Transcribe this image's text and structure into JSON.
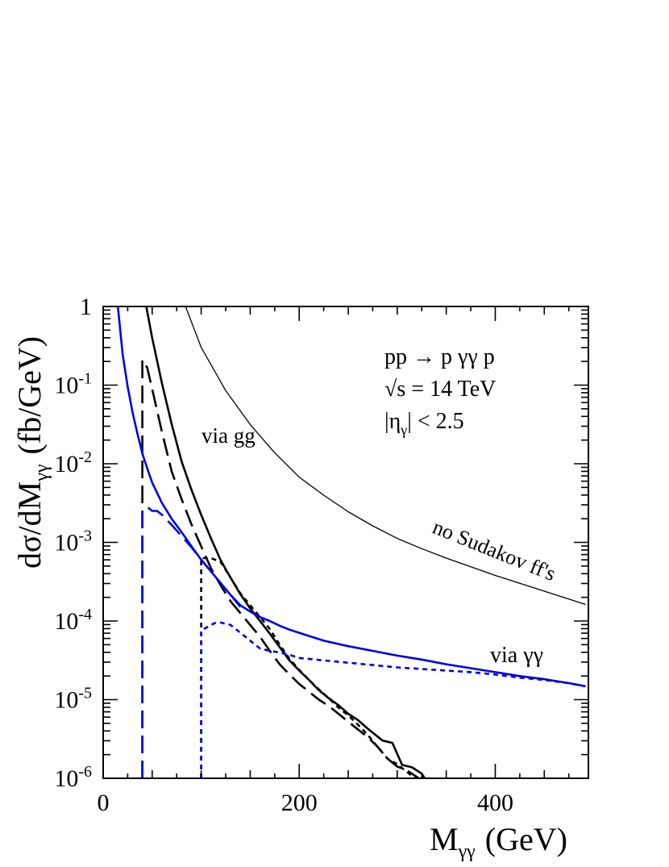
{
  "chart_data": {
    "type": "line",
    "title": "",
    "xlabel": "M",
    "xlabel_sub": "γγ",
    "xlabel_unit": "(GeV)",
    "ylabel": "dσ/dM",
    "ylabel_sub": "γγ",
    "ylabel_unit": "(fb/GeV)",
    "xlim": [
      0,
      495
    ],
    "ylim_log10": [
      -6,
      0
    ],
    "y_scale": "log",
    "grid": false,
    "x_ticks": [
      {
        "value": 0,
        "label": "0"
      },
      {
        "value": 200,
        "label": "200"
      },
      {
        "value": 400,
        "label": "400"
      }
    ],
    "y_ticks": [
      {
        "exp": 0,
        "base": "1",
        "sup": ""
      },
      {
        "exp": -1,
        "base": "10",
        "sup": "-1"
      },
      {
        "exp": -2,
        "base": "10",
        "sup": "-2"
      },
      {
        "exp": -3,
        "base": "10",
        "sup": "-3"
      },
      {
        "exp": -4,
        "base": "10",
        "sup": "-4"
      },
      {
        "exp": -5,
        "base": "10",
        "sup": "-5"
      },
      {
        "exp": -6,
        "base": "10",
        "sup": "-6"
      }
    ],
    "legend_box": {
      "line1": "pp → p γγ p",
      "line2_sqrt": "√",
      "line2_rest": "s = 14 TeV",
      "line3_start": "|η",
      "line3_sub": "γ",
      "line3_end": "| < 2.5"
    },
    "curve_labels": {
      "via_gg": "via gg",
      "no_sudakov": "no Sudakov ff's",
      "via_yy": "via γγ"
    },
    "colors": {
      "black": "#000000",
      "blue": "#0000e0"
    },
    "series": [
      {
        "color": "black",
        "style": "solid-thin",
        "points": [
          [
            84,
            0
          ],
          [
            100,
            -0.52
          ],
          [
            125,
            -1.07
          ],
          [
            150,
            -1.5
          ],
          [
            175,
            -1.86
          ],
          [
            200,
            -2.17
          ],
          [
            225,
            -2.4
          ],
          [
            250,
            -2.61
          ],
          [
            275,
            -2.79
          ],
          [
            300,
            -2.95
          ],
          [
            325,
            -3.08
          ],
          [
            350,
            -3.2
          ],
          [
            375,
            -3.31
          ],
          [
            400,
            -3.42
          ],
          [
            425,
            -3.52
          ],
          [
            450,
            -3.62
          ],
          [
            475,
            -3.72
          ],
          [
            492,
            -3.79
          ]
        ]
      },
      {
        "color": "black",
        "style": "solid",
        "points": [
          [
            44,
            0
          ],
          [
            50,
            -0.4
          ],
          [
            60,
            -0.98
          ],
          [
            70,
            -1.5
          ],
          [
            80,
            -1.97
          ],
          [
            90,
            -2.33
          ],
          [
            100,
            -2.65
          ],
          [
            110,
            -2.95
          ],
          [
            120,
            -3.23
          ],
          [
            130,
            -3.45
          ],
          [
            140,
            -3.66
          ],
          [
            150,
            -3.84
          ],
          [
            160,
            -4.0
          ],
          [
            170,
            -4.16
          ],
          [
            180,
            -4.33
          ],
          [
            190,
            -4.5
          ],
          [
            200,
            -4.63
          ],
          [
            210,
            -4.75
          ],
          [
            220,
            -4.88
          ],
          [
            230,
            -4.98
          ],
          [
            240,
            -5.07
          ],
          [
            250,
            -5.18
          ],
          [
            260,
            -5.26
          ],
          [
            270,
            -5.37
          ],
          [
            285,
            -5.52
          ],
          [
            295,
            -5.55
          ],
          [
            305,
            -5.83
          ],
          [
            315,
            -5.86
          ],
          [
            325,
            -5.94
          ],
          [
            328,
            -6.0
          ]
        ]
      },
      {
        "color": "black",
        "style": "dashed-long",
        "points": [
          [
            40,
            -6.0
          ],
          [
            40,
            -0.68
          ],
          [
            45,
            -0.78
          ],
          [
            50,
            -1.05
          ],
          [
            60,
            -1.6
          ],
          [
            70,
            -2.1
          ],
          [
            80,
            -2.45
          ],
          [
            90,
            -2.77
          ],
          [
            100,
            -3.05
          ],
          [
            110,
            -3.33
          ],
          [
            120,
            -3.55
          ],
          [
            130,
            -3.75
          ],
          [
            140,
            -3.9
          ],
          [
            150,
            -4.05
          ],
          [
            160,
            -4.2
          ],
          [
            170,
            -4.38
          ],
          [
            180,
            -4.55
          ],
          [
            190,
            -4.68
          ],
          [
            200,
            -4.8
          ],
          [
            210,
            -4.9
          ],
          [
            220,
            -5.0
          ],
          [
            230,
            -5.08
          ],
          [
            240,
            -5.18
          ],
          [
            250,
            -5.28
          ],
          [
            260,
            -5.38
          ],
          [
            270,
            -5.48
          ],
          [
            280,
            -5.6
          ],
          [
            290,
            -5.75
          ],
          [
            300,
            -5.85
          ],
          [
            310,
            -5.9
          ],
          [
            322,
            -6.0
          ]
        ]
      },
      {
        "color": "black",
        "style": "dotted",
        "points": [
          [
            100,
            -6.0
          ],
          [
            100,
            -3.2
          ],
          [
            110,
            -3.2
          ],
          [
            120,
            -3.25
          ],
          [
            130,
            -3.45
          ],
          [
            140,
            -3.65
          ],
          [
            150,
            -3.8
          ],
          [
            160,
            -3.95
          ],
          [
            170,
            -4.1
          ],
          [
            180,
            -4.3
          ],
          [
            190,
            -4.48
          ],
          [
            200,
            -4.62
          ],
          [
            210,
            -4.75
          ],
          [
            220,
            -4.87
          ],
          [
            230,
            -4.98
          ],
          [
            240,
            -5.1
          ],
          [
            250,
            -5.2
          ],
          [
            260,
            -5.32
          ],
          [
            270,
            -5.45
          ],
          [
            280,
            -5.6
          ],
          [
            290,
            -5.75
          ],
          [
            300,
            -5.82
          ],
          [
            310,
            -5.92
          ],
          [
            318,
            -6.0
          ]
        ]
      },
      {
        "color": "blue",
        "style": "solid",
        "points": [
          [
            15,
            0
          ],
          [
            20,
            -0.62
          ],
          [
            25,
            -1.02
          ],
          [
            30,
            -1.35
          ],
          [
            35,
            -1.62
          ],
          [
            40,
            -1.87
          ],
          [
            45,
            -2.06
          ],
          [
            50,
            -2.24
          ],
          [
            60,
            -2.5
          ],
          [
            70,
            -2.7
          ],
          [
            80,
            -2.87
          ],
          [
            90,
            -3.05
          ],
          [
            100,
            -3.22
          ],
          [
            110,
            -3.37
          ],
          [
            120,
            -3.52
          ],
          [
            130,
            -3.67
          ],
          [
            140,
            -3.8
          ],
          [
            150,
            -3.88
          ],
          [
            160,
            -3.95
          ],
          [
            170,
            -4.0
          ],
          [
            180,
            -4.06
          ],
          [
            190,
            -4.11
          ],
          [
            200,
            -4.15
          ],
          [
            225,
            -4.25
          ],
          [
            250,
            -4.32
          ],
          [
            275,
            -4.38
          ],
          [
            300,
            -4.44
          ],
          [
            325,
            -4.49
          ],
          [
            350,
            -4.55
          ],
          [
            375,
            -4.6
          ],
          [
            400,
            -4.65
          ],
          [
            425,
            -4.7
          ],
          [
            450,
            -4.74
          ],
          [
            475,
            -4.79
          ],
          [
            492,
            -4.83
          ]
        ]
      },
      {
        "color": "blue",
        "style": "dashed-long",
        "points": [
          [
            40,
            -6.0
          ],
          [
            40,
            -2.59
          ],
          [
            45,
            -2.55
          ],
          [
            50,
            -2.6
          ],
          [
            55,
            -2.6
          ],
          [
            60,
            -2.65
          ],
          [
            70,
            -2.78
          ],
          [
            80,
            -2.92
          ],
          [
            90,
            -3.06
          ],
          [
            100,
            -3.22
          ],
          [
            110,
            -3.37
          ],
          [
            120,
            -3.52
          ],
          [
            130,
            -3.67
          ],
          [
            140,
            -3.82
          ]
        ]
      },
      {
        "color": "blue",
        "style": "dotted",
        "points": [
          [
            100,
            -6.0
          ],
          [
            100,
            -4.12
          ],
          [
            110,
            -4.05
          ],
          [
            115,
            -4.02
          ],
          [
            120,
            -4.02
          ],
          [
            130,
            -4.05
          ],
          [
            140,
            -4.15
          ],
          [
            150,
            -4.25
          ],
          [
            160,
            -4.35
          ],
          [
            170,
            -4.38
          ],
          [
            180,
            -4.4
          ],
          [
            190,
            -4.43
          ],
          [
            200,
            -4.47
          ],
          [
            225,
            -4.5
          ],
          [
            250,
            -4.53
          ],
          [
            275,
            -4.56
          ],
          [
            300,
            -4.59
          ],
          [
            325,
            -4.61
          ],
          [
            350,
            -4.63
          ],
          [
            375,
            -4.65
          ],
          [
            400,
            -4.68
          ],
          [
            425,
            -4.72
          ],
          [
            450,
            -4.75
          ],
          [
            475,
            -4.79
          ],
          [
            492,
            -4.83
          ]
        ]
      }
    ]
  }
}
